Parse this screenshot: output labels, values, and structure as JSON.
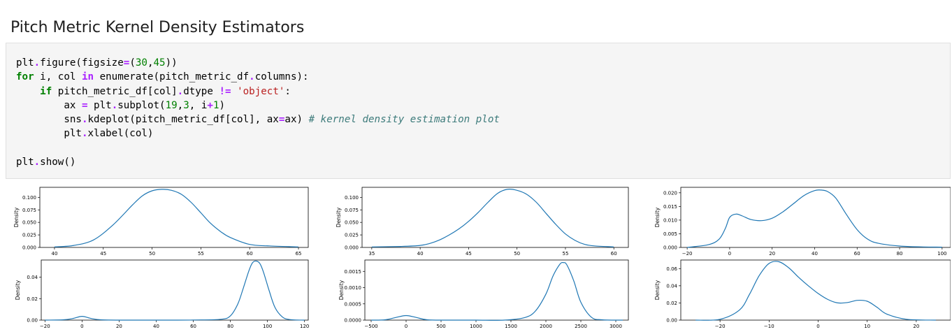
{
  "heading": "Pitch Metric Kernel Density Estimators",
  "code_lines": [
    "plt.figure(figsize=(30,45))",
    "for i, col in enumerate(pitch_metric_df.columns):",
    "    if pitch_metric_df[col].dtype != 'object':",
    "        ax = plt.subplot(19,3, i+1)",
    "        sns.kdeplot(pitch_metric_df[col], ax=ax) # kernel density estimation plot",
    "        plt.xlabel(col)",
    "",
    "plt.show()"
  ],
  "colors": {
    "line": "#1f77b4",
    "code_bg": "#f5f5f5"
  },
  "chart_data": [
    {
      "type": "line",
      "ylabel": "Density",
      "xlim": [
        38.5,
        66
      ],
      "ylim": [
        0,
        0.12
      ],
      "xticks": [
        40,
        45,
        50,
        55,
        60,
        65
      ],
      "yticks": [
        "0.000",
        "0.025",
        "0.050",
        "0.075",
        "0.100"
      ],
      "x": [
        40,
        42,
        44,
        46,
        48,
        49,
        50,
        51,
        52,
        53,
        54,
        55,
        56,
        57,
        58,
        60,
        62,
        65
      ],
      "y": [
        0.001,
        0.004,
        0.015,
        0.045,
        0.085,
        0.103,
        0.113,
        0.116,
        0.114,
        0.106,
        0.09,
        0.069,
        0.048,
        0.032,
        0.02,
        0.006,
        0.003,
        0.001
      ]
    },
    {
      "type": "line",
      "ylabel": "Density",
      "xlim": [
        34,
        61.5
      ],
      "ylim": [
        0,
        0.12
      ],
      "xticks": [
        35,
        40,
        45,
        50,
        55,
        60
      ],
      "yticks": [
        "0.000",
        "0.025",
        "0.050",
        "0.075",
        "0.100"
      ],
      "x": [
        35,
        38,
        40,
        41,
        42,
        43,
        44,
        45,
        46,
        47,
        48,
        49,
        50,
        51,
        52,
        53,
        54,
        55,
        56,
        57,
        58,
        60
      ],
      "y": [
        0.001,
        0.002,
        0.004,
        0.008,
        0.015,
        0.025,
        0.037,
        0.052,
        0.07,
        0.09,
        0.108,
        0.116,
        0.114,
        0.106,
        0.09,
        0.068,
        0.046,
        0.027,
        0.014,
        0.006,
        0.003,
        0.001
      ]
    },
    {
      "type": "line",
      "ylabel": "Density",
      "xlim": [
        -23,
        104
      ],
      "ylim": [
        0,
        0.022
      ],
      "xticks": [
        -20,
        0,
        20,
        40,
        60,
        80,
        100
      ],
      "yticks": [
        "0.000",
        "0.005",
        "0.010",
        "0.015",
        "0.020"
      ],
      "x": [
        -20,
        -10,
        -5,
        -2,
        0,
        3,
        6,
        10,
        15,
        20,
        25,
        30,
        35,
        40,
        43,
        46,
        50,
        55,
        60,
        65,
        70,
        80,
        90,
        100
      ],
      "y": [
        0.0,
        0.001,
        0.003,
        0.007,
        0.011,
        0.0122,
        0.0115,
        0.0102,
        0.0098,
        0.0107,
        0.013,
        0.016,
        0.019,
        0.0208,
        0.021,
        0.0205,
        0.018,
        0.012,
        0.0065,
        0.003,
        0.0015,
        0.0005,
        0.0002,
        0.0001
      ]
    },
    {
      "type": "line",
      "ylabel": "Density",
      "xlim": [
        -22,
        122
      ],
      "ylim": [
        0,
        0.056
      ],
      "xticks": [
        -20,
        0,
        20,
        40,
        60,
        80,
        100,
        120
      ],
      "yticks": [
        "0.00",
        "0.02",
        "0.04"
      ],
      "x": [
        -20,
        -10,
        -5,
        0,
        5,
        10,
        20,
        40,
        60,
        75,
        80,
        84,
        87,
        90,
        92,
        94,
        96,
        98,
        101,
        104,
        108,
        112,
        120
      ],
      "y": [
        0.0,
        0.0003,
        0.0015,
        0.0035,
        0.0015,
        0.0003,
        0.0,
        0.0,
        0.0001,
        0.0008,
        0.004,
        0.015,
        0.03,
        0.046,
        0.0535,
        0.055,
        0.0525,
        0.044,
        0.027,
        0.012,
        0.003,
        0.0005,
        0.0
      ]
    },
    {
      "type": "line",
      "ylabel": "Density",
      "xlim": [
        -590,
        3180
      ],
      "ylim": [
        0,
        0.00185
      ],
      "xticks": [
        -500,
        0,
        500,
        1000,
        1500,
        2000,
        2500,
        3000
      ],
      "yticks": [
        "0.0000",
        "0.0005",
        "0.0010",
        "0.0015"
      ],
      "x": [
        -500,
        -300,
        -150,
        0,
        150,
        300,
        600,
        1000,
        1400,
        1700,
        1850,
        2000,
        2100,
        2200,
        2250,
        2300,
        2400,
        2500,
        2650,
        2800,
        3100
      ],
      "y": [
        0.0,
        1e-05,
        8e-05,
        0.00014,
        8e-05,
        1e-05,
        0.0,
        0.0,
        0.0,
        8e-05,
        0.00028,
        0.0008,
        0.00135,
        0.00172,
        0.00177,
        0.0017,
        0.0012,
        0.00055,
        9e-05,
        1e-05,
        0.0
      ]
    },
    {
      "type": "line",
      "ylabel": "Density",
      "xlim": [
        -28,
        27
      ],
      "ylim": [
        0,
        0.07
      ],
      "xticks": [
        -20,
        -10,
        0,
        10,
        20
      ],
      "yticks": [
        "0.00",
        "0.02",
        "0.04",
        "0.06"
      ],
      "x": [
        -25,
        -20,
        -16,
        -14,
        -12,
        -10,
        -8,
        -6,
        -4,
        -2,
        0,
        2,
        4,
        6,
        8,
        10,
        12,
        14,
        18,
        24
      ],
      "y": [
        0.0,
        0.001,
        0.012,
        0.03,
        0.052,
        0.066,
        0.068,
        0.061,
        0.05,
        0.04,
        0.031,
        0.024,
        0.02,
        0.0205,
        0.023,
        0.022,
        0.015,
        0.007,
        0.001,
        0.0
      ]
    }
  ]
}
